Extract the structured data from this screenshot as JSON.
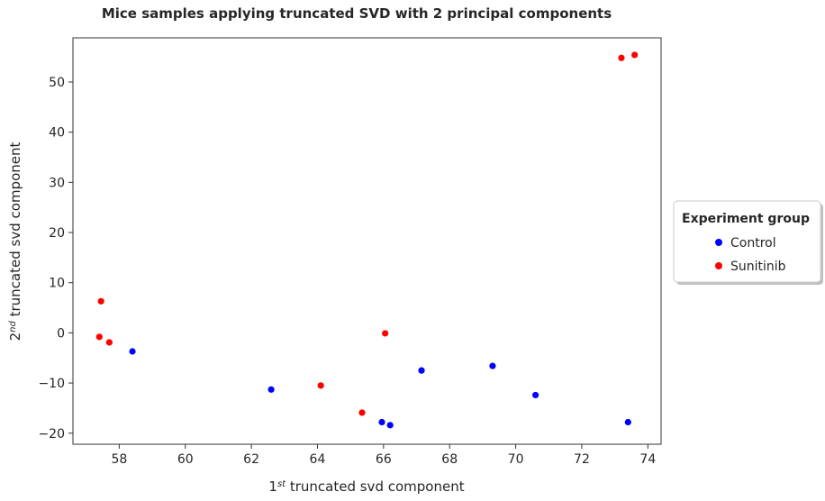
{
  "chart_data": {
    "type": "scatter",
    "title": "Mice samples applying truncated SVD with 2 principal components",
    "xlabel": {
      "prefix": "1",
      "sup": "st",
      "rest": " truncated svd component"
    },
    "ylabel": {
      "prefix": "2",
      "sup": "nd",
      "rest": " truncated svd component"
    },
    "xlim": [
      56.6,
      74.4
    ],
    "ylim": [
      -22.2,
      58.8
    ],
    "x_ticks": [
      58,
      60,
      62,
      64,
      66,
      68,
      70,
      72,
      74
    ],
    "y_ticks": [
      -20,
      -10,
      0,
      10,
      20,
      30,
      40,
      50
    ],
    "grid": false,
    "legend": {
      "title": "Experiment group",
      "placement": "outside-right"
    },
    "series": [
      {
        "name": "Control",
        "color": "#0000ff",
        "points": [
          {
            "x": 58.4,
            "y": -3.7
          },
          {
            "x": 62.6,
            "y": -11.3
          },
          {
            "x": 65.95,
            "y": -17.8
          },
          {
            "x": 66.2,
            "y": -18.4
          },
          {
            "x": 67.15,
            "y": -7.5
          },
          {
            "x": 69.3,
            "y": -6.6
          },
          {
            "x": 70.6,
            "y": -12.4
          },
          {
            "x": 73.4,
            "y": -17.8
          }
        ]
      },
      {
        "name": "Sunitinib",
        "color": "#ff0000",
        "points": [
          {
            "x": 57.4,
            "y": -0.8
          },
          {
            "x": 57.45,
            "y": 6.3
          },
          {
            "x": 57.7,
            "y": -1.9
          },
          {
            "x": 64.1,
            "y": -10.5
          },
          {
            "x": 65.35,
            "y": -15.9
          },
          {
            "x": 66.05,
            "y": -0.1
          },
          {
            "x": 73.2,
            "y": 54.8
          },
          {
            "x": 73.6,
            "y": 55.4
          }
        ]
      }
    ]
  }
}
